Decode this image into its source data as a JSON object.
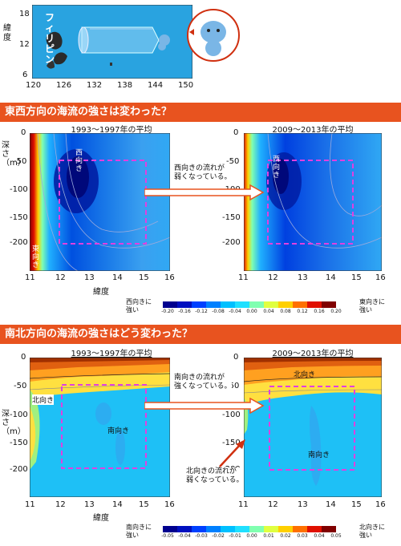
{
  "map": {
    "y_ticks": [
      "18",
      "12",
      "6"
    ],
    "x_ticks": [
      "120",
      "126",
      "132",
      "138",
      "144",
      "150"
    ],
    "y_label": "緯度",
    "place": "フィリピン"
  },
  "section1": {
    "header": "東西方向の海流の強さは変わった？",
    "left_title": "1993～1997年の平均",
    "right_title": "2009～2013年の平均",
    "y_label": "深さ（m）",
    "x_label": "緯度",
    "y_ticks": [
      "0",
      "-50",
      "-100",
      "-150",
      "-200"
    ],
    "x_ticks": [
      "11",
      "12",
      "13",
      "14",
      "15",
      "16"
    ],
    "label_west": "西向き",
    "label_east": "東向き",
    "note": [
      "西向きの流れが",
      "弱くなっている。"
    ],
    "bar_left": [
      "西向きに",
      "強い"
    ],
    "bar_right": [
      "東向きに",
      "強い"
    ],
    "bar_ticks": [
      "-0.20",
      "-0.16",
      "-0.12",
      "-0.08",
      "-0.04",
      "0.00",
      "0.04",
      "0.08",
      "0.12",
      "0.16",
      "0.20"
    ],
    "bar_colors": [
      "#00008f",
      "#0010c0",
      "#0040ff",
      "#0080ff",
      "#00c0ff",
      "#20e0ff",
      "#80ffb0",
      "#e0ff40",
      "#ffd000",
      "#ff7000",
      "#e01000",
      "#800000"
    ]
  },
  "section2": {
    "header": "南北方向の海流の強さはどう変わった？",
    "left_title": "1993～1997年の平均",
    "right_title": "2009～2013年の平均",
    "y_label": "深さ（m）",
    "x_label": "緯度",
    "y_ticks": [
      "0",
      "-50",
      "-100",
      "-150",
      "-200"
    ],
    "x_ticks": [
      "11",
      "12",
      "13",
      "14",
      "15",
      "16"
    ],
    "label_north_left": "北向き",
    "label_north_right": "北向き",
    "label_south_left": "南向き",
    "label_south_right": "南向き",
    "note_south": [
      "南向きの流れが",
      "強くなっている。"
    ],
    "note_north": [
      "北向きの流れが",
      "弱くなっている。"
    ],
    "bar_left": [
      "南向きに",
      "強い"
    ],
    "bar_right": [
      "北向きに",
      "強い"
    ],
    "bar_ticks": [
      "-0.05",
      "-0.04",
      "-0.03",
      "-0.02",
      "-0.01",
      "0.00",
      "0.01",
      "0.02",
      "0.03",
      "0.04",
      "0.05"
    ],
    "bar_colors": [
      "#00008f",
      "#0010c0",
      "#0040ff",
      "#0080ff",
      "#00c0ff",
      "#20e0ff",
      "#80ffb0",
      "#e0ff40",
      "#ffd000",
      "#ff7000",
      "#e01000",
      "#800000"
    ]
  },
  "colors": {
    "header_bg": "#e8531f",
    "dashed_box": "#e040e0",
    "arrow": "#d03010"
  }
}
